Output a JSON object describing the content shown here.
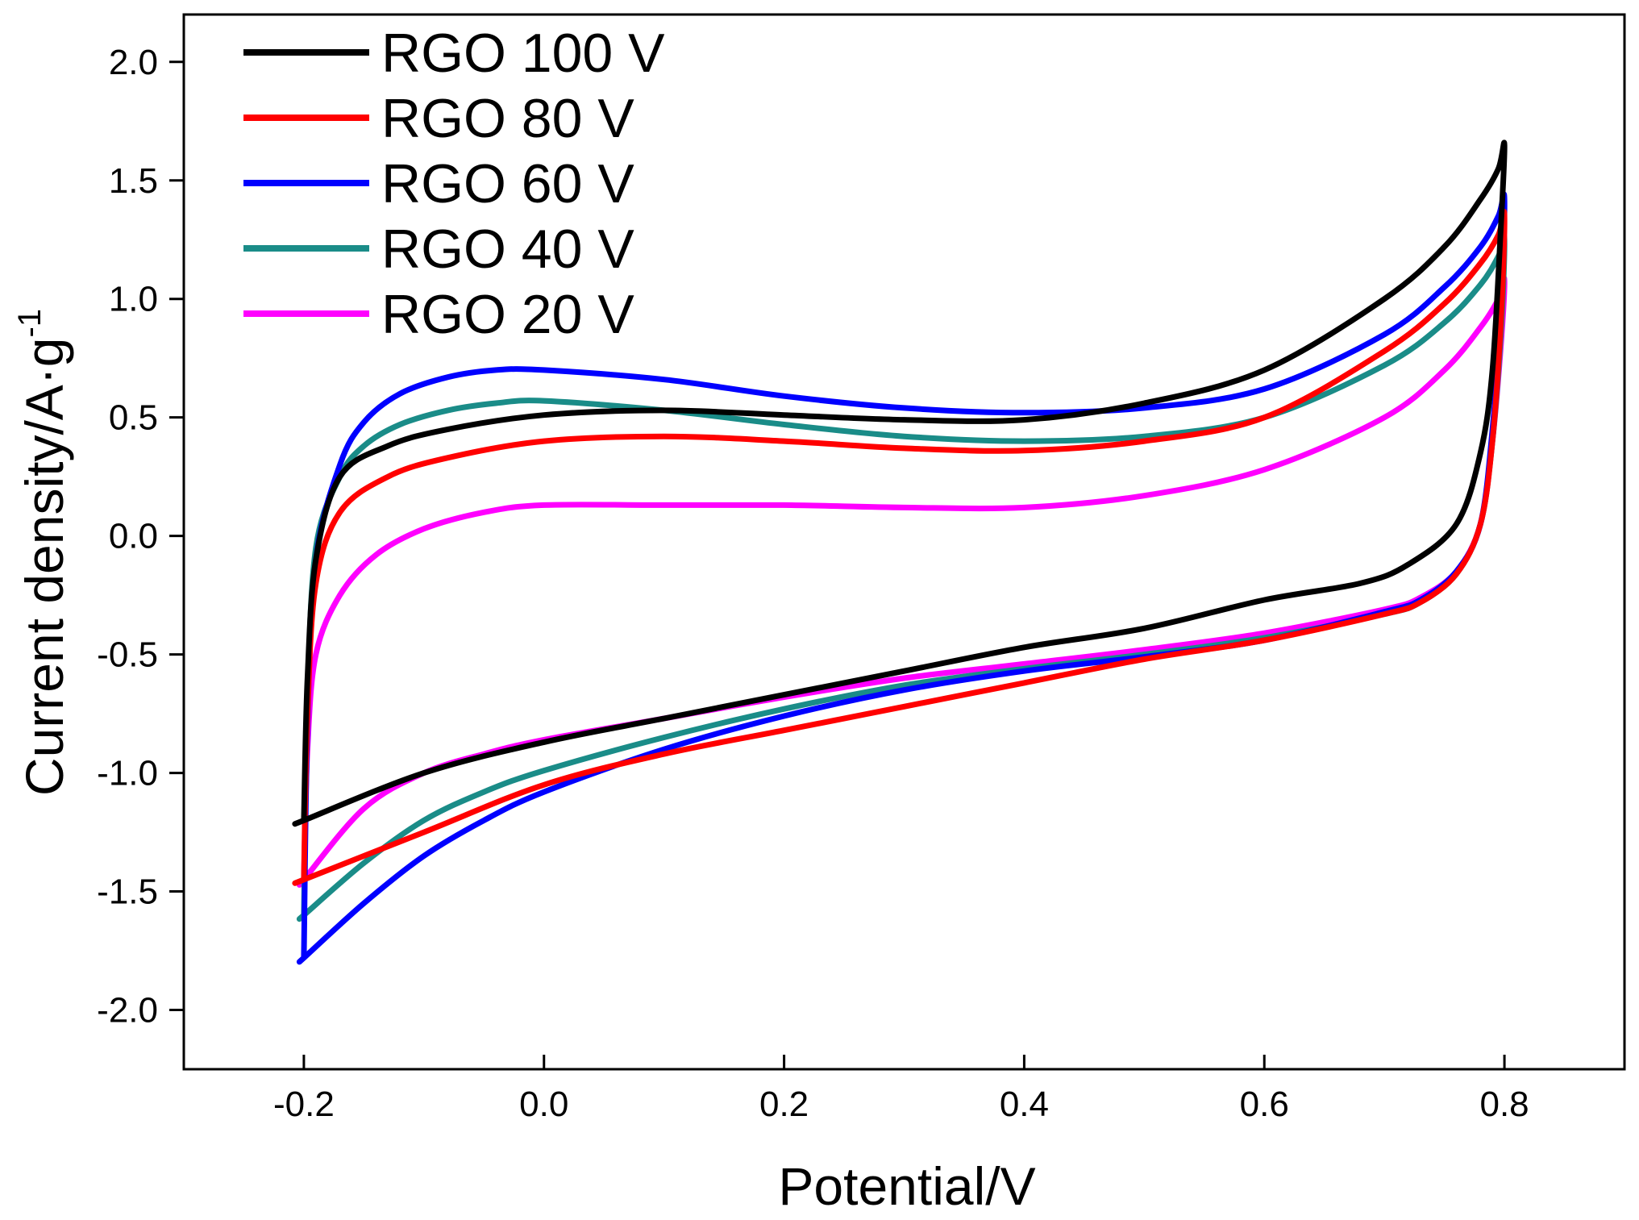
{
  "chart_data": {
    "type": "line",
    "title": "",
    "xlabel": "Potential/V",
    "ylabel_main": "Current density/A·g",
    "ylabel_sup": "-1",
    "xlim": [
      -0.3,
      0.9
    ],
    "ylim": [
      -2.25,
      2.2
    ],
    "x_ticks": [
      -0.2,
      0.0,
      0.2,
      0.4,
      0.6,
      0.8
    ],
    "x_tick_labels": [
      "-0.2",
      "0.0",
      "0.2",
      "0.4",
      "0.6",
      "0.8"
    ],
    "y_ticks": [
      2.0,
      1.5,
      1.0,
      0.5,
      0.0,
      -0.5,
      -1.0,
      -1.5,
      -2.0
    ],
    "y_tick_labels": [
      "2.0",
      "1.5",
      "1.0",
      "0.5",
      "0.0",
      "-0.5",
      "-1.0",
      "-1.5",
      "-2.0"
    ],
    "legend_position": "top-left",
    "series": [
      {
        "name": "RGO 100 V",
        "color": "#000000",
        "x": [
          -0.2,
          -0.197,
          -0.19,
          -0.17,
          -0.13,
          -0.08,
          0.0,
          0.1,
          0.2,
          0.3,
          0.4,
          0.5,
          0.6,
          0.7,
          0.75,
          0.78,
          0.795,
          0.8,
          0.797,
          0.79,
          0.78,
          0.76,
          0.72,
          0.68,
          0.6,
          0.5,
          0.4,
          0.3,
          0.2,
          0.1,
          0.0,
          -0.1,
          -0.2,
          -0.2
        ],
        "y": [
          -1.2,
          -0.6,
          -0.1,
          0.25,
          0.38,
          0.45,
          0.51,
          0.53,
          0.51,
          0.49,
          0.49,
          0.56,
          0.7,
          1.0,
          1.22,
          1.42,
          1.55,
          1.65,
          1.3,
          0.7,
          0.35,
          0.05,
          -0.12,
          -0.2,
          -0.27,
          -0.39,
          -0.47,
          -0.57,
          -0.67,
          -0.77,
          -0.87,
          -1.0,
          -1.2,
          -1.2
        ]
      },
      {
        "name": "RGO 80 V",
        "color": "#ff0000",
        "x": [
          -0.2,
          -0.197,
          -0.19,
          -0.17,
          -0.13,
          -0.08,
          0.0,
          0.1,
          0.2,
          0.3,
          0.4,
          0.5,
          0.6,
          0.7,
          0.75,
          0.78,
          0.795,
          0.8,
          0.797,
          0.79,
          0.78,
          0.76,
          0.73,
          0.7,
          0.6,
          0.5,
          0.4,
          0.3,
          0.2,
          0.1,
          0.0,
          -0.1,
          -0.2,
          -0.2
        ],
        "y": [
          -1.45,
          -0.75,
          -0.2,
          0.1,
          0.25,
          0.33,
          0.4,
          0.42,
          0.4,
          0.37,
          0.36,
          0.4,
          0.5,
          0.78,
          0.98,
          1.15,
          1.27,
          1.35,
          0.9,
          0.4,
          0.05,
          -0.16,
          -0.28,
          -0.33,
          -0.44,
          -0.52,
          -0.62,
          -0.72,
          -0.82,
          -0.92,
          -1.05,
          -1.25,
          -1.45,
          -1.45
        ]
      },
      {
        "name": "RGO 60 V",
        "color": "#0000ff",
        "x": [
          -0.2,
          -0.197,
          -0.19,
          -0.17,
          -0.15,
          -0.12,
          -0.08,
          -0.04,
          0.0,
          0.1,
          0.2,
          0.3,
          0.4,
          0.5,
          0.6,
          0.7,
          0.75,
          0.78,
          0.795,
          0.8,
          0.797,
          0.79,
          0.78,
          0.76,
          0.73,
          0.7,
          0.6,
          0.5,
          0.4,
          0.3,
          0.2,
          0.1,
          0.0,
          -0.05,
          -0.1,
          -0.15,
          -0.2,
          -0.2
        ],
        "y": [
          -1.78,
          -0.8,
          -0.1,
          0.3,
          0.48,
          0.6,
          0.67,
          0.7,
          0.7,
          0.66,
          0.59,
          0.54,
          0.52,
          0.54,
          0.62,
          0.85,
          1.05,
          1.22,
          1.35,
          1.42,
          0.95,
          0.45,
          0.05,
          -0.15,
          -0.27,
          -0.32,
          -0.44,
          -0.51,
          -0.57,
          -0.65,
          -0.76,
          -0.9,
          -1.08,
          -1.2,
          -1.35,
          -1.55,
          -1.78,
          -1.78
        ]
      },
      {
        "name": "RGO 40 V",
        "color": "#1a8c88",
        "x": [
          -0.2,
          -0.197,
          -0.19,
          -0.17,
          -0.15,
          -0.12,
          -0.08,
          -0.04,
          0.0,
          0.1,
          0.2,
          0.3,
          0.4,
          0.5,
          0.6,
          0.7,
          0.75,
          0.78,
          0.795,
          0.8,
          0.797,
          0.79,
          0.78,
          0.76,
          0.73,
          0.7,
          0.6,
          0.5,
          0.4,
          0.3,
          0.2,
          0.1,
          0.0,
          -0.05,
          -0.1,
          -0.15,
          -0.2,
          -0.2
        ],
        "y": [
          -1.6,
          -0.7,
          -0.05,
          0.25,
          0.38,
          0.47,
          0.53,
          0.56,
          0.57,
          0.53,
          0.47,
          0.42,
          0.4,
          0.42,
          0.5,
          0.72,
          0.9,
          1.06,
          1.18,
          1.25,
          0.85,
          0.4,
          0.05,
          -0.16,
          -0.28,
          -0.33,
          -0.43,
          -0.5,
          -0.56,
          -0.63,
          -0.73,
          -0.85,
          -0.99,
          -1.08,
          -1.2,
          -1.38,
          -1.6,
          -1.6
        ]
      },
      {
        "name": "RGO 20 V",
        "color": "#ff00ff",
        "x": [
          -0.2,
          -0.197,
          -0.19,
          -0.17,
          -0.14,
          -0.1,
          -0.05,
          0.0,
          0.1,
          0.2,
          0.3,
          0.4,
          0.5,
          0.6,
          0.7,
          0.75,
          0.78,
          0.795,
          0.8,
          0.797,
          0.79,
          0.78,
          0.76,
          0.73,
          0.7,
          0.6,
          0.5,
          0.4,
          0.3,
          0.2,
          0.1,
          0.0,
          -0.05,
          -0.1,
          -0.15,
          -0.2,
          -0.2
        ],
        "y": [
          -1.45,
          -0.9,
          -0.5,
          -0.25,
          -0.08,
          0.03,
          0.1,
          0.13,
          0.13,
          0.13,
          0.12,
          0.12,
          0.17,
          0.28,
          0.5,
          0.7,
          0.88,
          1.0,
          1.08,
          0.8,
          0.4,
          0.05,
          -0.15,
          -0.26,
          -0.31,
          -0.41,
          -0.48,
          -0.54,
          -0.6,
          -0.68,
          -0.77,
          -0.86,
          -0.92,
          -1.0,
          -1.15,
          -1.45,
          -1.45
        ]
      }
    ]
  }
}
